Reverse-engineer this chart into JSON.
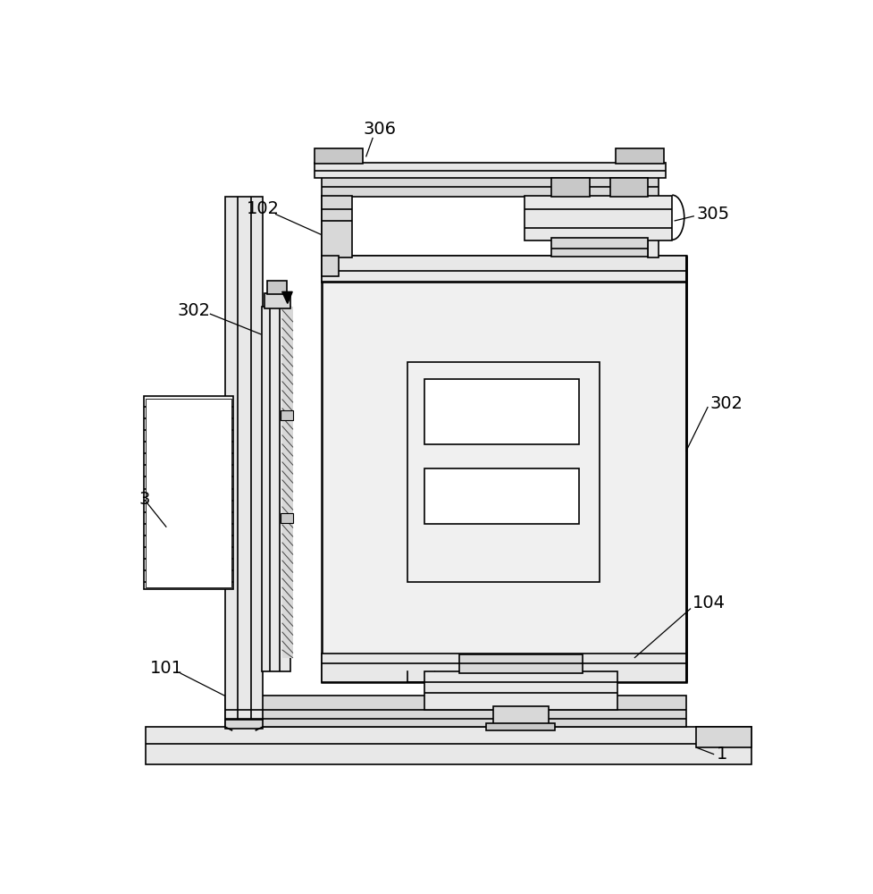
{
  "bg": "#ffffff",
  "lc": "#000000",
  "lw": 1.2,
  "tlw": 1.8,
  "g1": "#b0b0b0",
  "g2": "#c8c8c8",
  "g3": "#d8d8d8",
  "g4": "#e8e8e8",
  "g5": "#f0f0f0",
  "wh": "#ffffff"
}
